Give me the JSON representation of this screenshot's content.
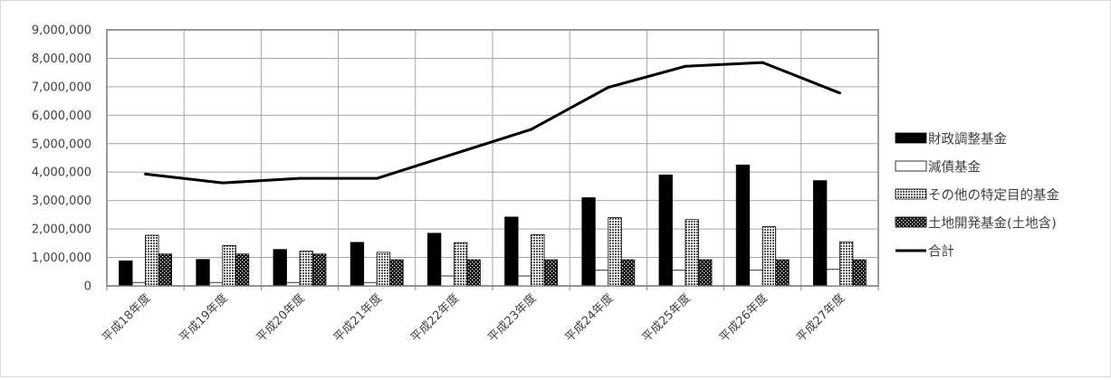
{
  "chart_data": {
    "type": "bar",
    "title": "",
    "xlabel": "",
    "ylabel": "",
    "categories": [
      "平成18年度",
      "平成19年度",
      "平成20年度",
      "平成21年度",
      "平成22年度",
      "平成23年度",
      "平成24年度",
      "平成25年度",
      "平成26年度",
      "平成27年度"
    ],
    "ylim": [
      0,
      9000000
    ],
    "yticks": [
      0,
      1000000,
      2000000,
      3000000,
      4000000,
      5000000,
      6000000,
      7000000,
      8000000,
      9000000
    ],
    "ytick_labels": [
      "0",
      "1,000,000",
      "2,000,000",
      "3,000,000",
      "4,000,000",
      "5,000,000",
      "6,000,000",
      "7,000,000",
      "8,000,000",
      "9,000,000"
    ],
    "grid": true,
    "legend_position": "right",
    "series": [
      {
        "name": "財政調整基金",
        "kind": "bar",
        "style": "solid-black",
        "values": [
          880000,
          930000,
          1280000,
          1530000,
          1850000,
          2420000,
          3100000,
          3900000,
          4250000,
          3700000
        ]
      },
      {
        "name": "減債基金",
        "kind": "bar",
        "style": "white",
        "values": [
          120000,
          120000,
          120000,
          120000,
          350000,
          350000,
          550000,
          550000,
          550000,
          580000
        ]
      },
      {
        "name": "その他の特定目的基金",
        "kind": "bar",
        "style": "crosshatch",
        "values": [
          1780000,
          1420000,
          1220000,
          1180000,
          1520000,
          1800000,
          2400000,
          2330000,
          2080000,
          1550000
        ]
      },
      {
        "name": "土地開発基金(土地含)",
        "kind": "bar",
        "style": "black-dotted",
        "values": [
          1120000,
          1120000,
          1120000,
          920000,
          920000,
          920000,
          920000,
          920000,
          920000,
          920000
        ]
      },
      {
        "name": "合計",
        "kind": "line",
        "style": "black-line",
        "values": [
          3930000,
          3620000,
          3780000,
          3780000,
          4640000,
          5500000,
          6980000,
          7720000,
          7850000,
          6780000
        ]
      }
    ],
    "colors": {
      "bar_fill": "#000000",
      "bar_stroke": "#000000",
      "line": "#000000",
      "grid": "#a6a6a6",
      "text": "#404040"
    }
  }
}
